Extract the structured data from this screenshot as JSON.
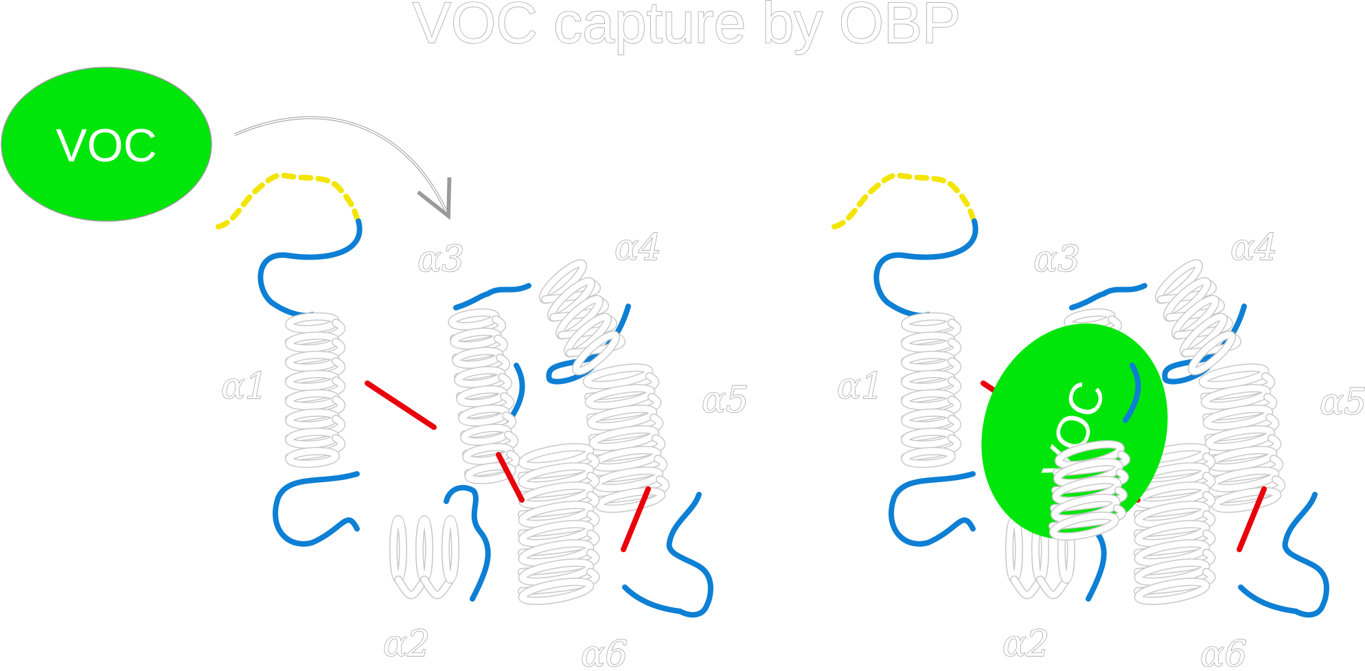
{
  "title": "VOC capture by OBP",
  "voc_label": "VOC",
  "helix_labels": [
    "α1",
    "α2",
    "α3",
    "α4",
    "α5",
    "α6"
  ],
  "colors": {
    "voc_fill": "#00e60a",
    "loop": "#0d7fd4",
    "disulfide": "#e8000b",
    "n_terminus": "#f2e500",
    "helix": "#ffffff",
    "outline": "#9a9a9a"
  }
}
